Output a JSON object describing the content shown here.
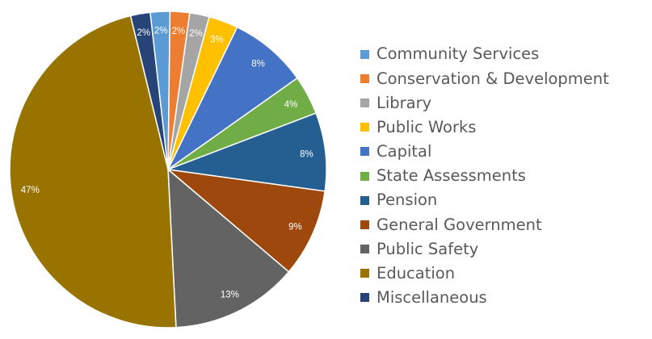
{
  "chart_data": {
    "type": "pie",
    "title": "",
    "legend_position": "right",
    "slices": [
      {
        "name": "Community Services",
        "value": 2,
        "label": "2%",
        "color": "#5b9bd5"
      },
      {
        "name": "Conservation & Development",
        "value": 2,
        "label": "2%",
        "color": "#ed7d31"
      },
      {
        "name": "Library",
        "value": 2,
        "label": "2%",
        "color": "#a5a5a5"
      },
      {
        "name": "Public Works",
        "value": 3,
        "label": "3%",
        "color": "#ffc000"
      },
      {
        "name": "Capital",
        "value": 8,
        "label": "8%",
        "color": "#4472c4"
      },
      {
        "name": "State Assessments",
        "value": 4,
        "label": "4%",
        "color": "#70ad47"
      },
      {
        "name": "Pension",
        "value": 8,
        "label": "8%",
        "color": "#255e91"
      },
      {
        "name": "General Government",
        "value": 9,
        "label": "9%",
        "color": "#9e480e"
      },
      {
        "name": "Public Safety",
        "value": 13,
        "label": "13%",
        "color": "#636363"
      },
      {
        "name": "Education",
        "value": 47,
        "label": "47%",
        "color": "#997300"
      },
      {
        "name": "Miscellaneous",
        "value": 2,
        "label": "2%",
        "color": "#264478"
      }
    ]
  }
}
